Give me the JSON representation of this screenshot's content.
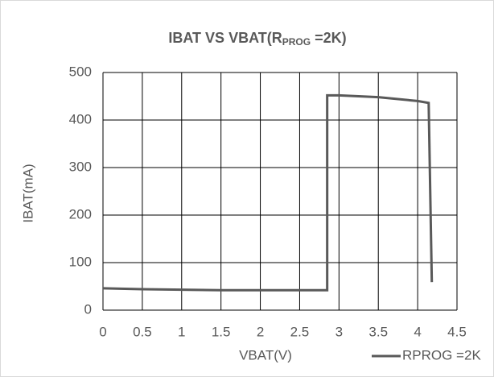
{
  "chart_data": {
    "type": "line",
    "title": [
      "IBAT VS VBAT(R",
      "PROG",
      " =2K)"
    ],
    "x_label": "VBAT(V)",
    "y_label": "IBAT(mA)",
    "xlim": [
      0,
      4.5
    ],
    "xticks": [
      0,
      0.5,
      1,
      1.5,
      2,
      2.5,
      3,
      3.5,
      4,
      4.5
    ],
    "ylim": [
      0,
      500
    ],
    "yticks": [
      0,
      100,
      200,
      300,
      400,
      500
    ],
    "grid": true,
    "legend": "bottom-right",
    "series": [
      {
        "name": "RPROG =2K",
        "color": "#595959",
        "x": [
          0,
          0.5,
          1,
          1.5,
          2,
          2.5,
          2.85,
          2.85,
          3,
          3.5,
          4,
          4.14,
          4.18
        ],
        "values": [
          46,
          44,
          43,
          42,
          42,
          42,
          42,
          452,
          452,
          448,
          440,
          436,
          59
        ]
      }
    ]
  }
}
